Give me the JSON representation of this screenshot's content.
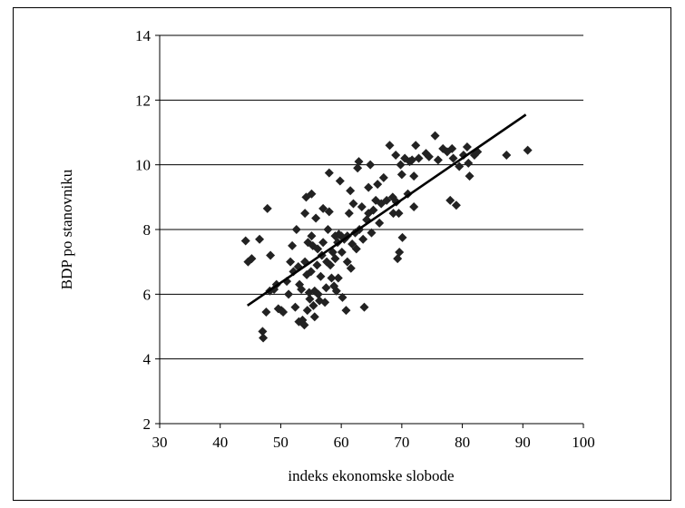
{
  "chart_data": {
    "type": "scatter",
    "title": "",
    "xlabel": "indeks ekonomske slobode",
    "ylabel": "BDP po stanovniku",
    "xlim": [
      30,
      100
    ],
    "ylim": [
      2,
      14
    ],
    "xticks": [
      30,
      40,
      50,
      60,
      70,
      80,
      90,
      100
    ],
    "yticks": [
      2,
      4,
      6,
      8,
      10,
      12,
      14
    ],
    "grid": "horizontal",
    "legend": "none",
    "marker": "diamond",
    "marker_color": "#222222",
    "trendline": {
      "x": [
        44.5,
        90.5
      ],
      "y": [
        5.65,
        11.55
      ]
    },
    "points": [
      [
        44.2,
        7.65
      ],
      [
        44.6,
        7.0
      ],
      [
        45.2,
        7.1
      ],
      [
        46.5,
        7.7
      ],
      [
        47.0,
        4.85
      ],
      [
        47.1,
        4.65
      ],
      [
        47.6,
        5.45
      ],
      [
        47.8,
        8.65
      ],
      [
        48.2,
        6.1
      ],
      [
        48.3,
        7.2
      ],
      [
        48.9,
        6.15
      ],
      [
        49.3,
        6.3
      ],
      [
        49.6,
        5.55
      ],
      [
        50.1,
        5.5
      ],
      [
        50.4,
        5.45
      ],
      [
        51.0,
        6.4
      ],
      [
        51.3,
        6.0
      ],
      [
        51.6,
        7.0
      ],
      [
        51.9,
        7.5
      ],
      [
        52.1,
        6.7
      ],
      [
        52.4,
        5.6
      ],
      [
        52.6,
        8.0
      ],
      [
        52.9,
        6.85
      ],
      [
        53.1,
        6.3
      ],
      [
        53.0,
        5.15
      ],
      [
        53.4,
        6.15
      ],
      [
        53.6,
        5.2
      ],
      [
        53.9,
        5.05
      ],
      [
        54.0,
        7.0
      ],
      [
        54.0,
        8.5
      ],
      [
        54.2,
        9.0
      ],
      [
        54.3,
        6.6
      ],
      [
        54.4,
        5.5
      ],
      [
        54.5,
        7.6
      ],
      [
        54.7,
        6.05
      ],
      [
        54.8,
        5.85
      ],
      [
        55.0,
        6.7
      ],
      [
        55.1,
        7.8
      ],
      [
        55.1,
        9.1
      ],
      [
        55.3,
        7.5
      ],
      [
        55.4,
        5.65
      ],
      [
        55.6,
        6.1
      ],
      [
        55.6,
        5.3
      ],
      [
        55.8,
        8.35
      ],
      [
        56.0,
        6.9
      ],
      [
        56.1,
        7.4
      ],
      [
        56.2,
        6.0
      ],
      [
        56.4,
        5.8
      ],
      [
        56.6,
        6.55
      ],
      [
        56.8,
        7.2
      ],
      [
        57.0,
        7.6
      ],
      [
        57.0,
        8.65
      ],
      [
        57.3,
        5.75
      ],
      [
        57.5,
        6.2
      ],
      [
        57.6,
        7.0
      ],
      [
        57.8,
        8.0
      ],
      [
        58.0,
        9.75
      ],
      [
        58.0,
        8.55
      ],
      [
        58.2,
        6.9
      ],
      [
        58.4,
        6.5
      ],
      [
        58.6,
        7.3
      ],
      [
        58.8,
        6.25
      ],
      [
        59.0,
        7.8
      ],
      [
        59.0,
        7.1
      ],
      [
        59.2,
        6.1
      ],
      [
        59.4,
        7.6
      ],
      [
        59.5,
        6.5
      ],
      [
        59.6,
        7.85
      ],
      [
        59.8,
        9.5
      ],
      [
        60.0,
        7.8
      ],
      [
        60.1,
        7.3
      ],
      [
        60.2,
        5.9
      ],
      [
        60.5,
        7.7
      ],
      [
        60.8,
        5.5
      ],
      [
        61.0,
        7.0
      ],
      [
        61.0,
        7.8
      ],
      [
        61.3,
        8.5
      ],
      [
        61.5,
        9.2
      ],
      [
        61.6,
        6.8
      ],
      [
        61.8,
        7.55
      ],
      [
        62.0,
        8.8
      ],
      [
        62.3,
        7.9
      ],
      [
        62.5,
        7.4
      ],
      [
        62.7,
        9.9
      ],
      [
        62.9,
        10.1
      ],
      [
        63.0,
        8.0
      ],
      [
        63.4,
        8.7
      ],
      [
        63.6,
        7.7
      ],
      [
        63.8,
        5.6
      ],
      [
        64.2,
        8.3
      ],
      [
        64.5,
        9.3
      ],
      [
        64.5,
        8.5
      ],
      [
        64.8,
        10.0
      ],
      [
        65.0,
        7.9
      ],
      [
        65.3,
        8.6
      ],
      [
        65.7,
        8.9
      ],
      [
        66.0,
        9.4
      ],
      [
        66.3,
        8.2
      ],
      [
        66.6,
        8.8
      ],
      [
        67.0,
        9.6
      ],
      [
        67.5,
        8.9
      ],
      [
        68.0,
        10.6
      ],
      [
        68.5,
        9.0
      ],
      [
        68.6,
        8.5
      ],
      [
        69.0,
        10.3
      ],
      [
        69.1,
        8.85
      ],
      [
        69.3,
        7.1
      ],
      [
        69.5,
        8.5
      ],
      [
        69.6,
        7.3
      ],
      [
        69.8,
        10.0
      ],
      [
        70.0,
        9.7
      ],
      [
        70.1,
        7.75
      ],
      [
        70.5,
        10.2
      ],
      [
        71.0,
        9.1
      ],
      [
        71.3,
        10.1
      ],
      [
        71.7,
        10.15
      ],
      [
        72.0,
        9.65
      ],
      [
        72.0,
        8.7
      ],
      [
        72.3,
        10.6
      ],
      [
        72.8,
        10.2
      ],
      [
        74.0,
        10.35
      ],
      [
        74.5,
        10.25
      ],
      [
        75.5,
        10.9
      ],
      [
        76.0,
        10.15
      ],
      [
        76.8,
        10.5
      ],
      [
        77.5,
        10.4
      ],
      [
        78.0,
        8.9
      ],
      [
        78.3,
        10.5
      ],
      [
        78.5,
        10.2
      ],
      [
        79.0,
        8.75
      ],
      [
        79.5,
        9.95
      ],
      [
        80.2,
        10.3
      ],
      [
        80.8,
        10.55
      ],
      [
        81.0,
        10.05
      ],
      [
        81.2,
        9.65
      ],
      [
        82.0,
        10.3
      ],
      [
        82.5,
        10.4
      ],
      [
        87.3,
        10.3
      ],
      [
        90.8,
        10.45
      ]
    ]
  }
}
